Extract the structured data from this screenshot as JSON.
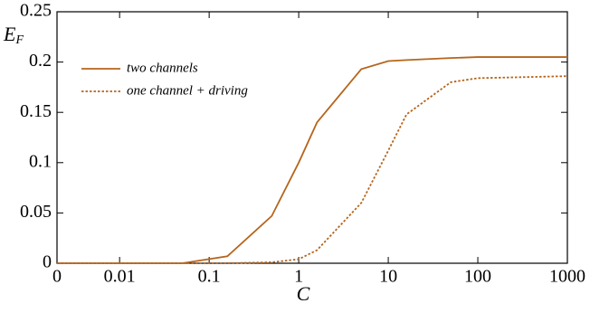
{
  "chart_data": {
    "type": "line",
    "x_label": "C",
    "y_label": "E_F",
    "log_x": true,
    "x": [
      0.002,
      0.01,
      0.05,
      0.16,
      0.5,
      1,
      1.6,
      5,
      10,
      16,
      50,
      100,
      1000
    ],
    "series": [
      {
        "name": "two channels",
        "color": "#b5651d",
        "dash": "solid",
        "values": [
          0,
          0,
          0,
          0.007,
          0.047,
          0.1,
          0.14,
          0.193,
          0.201,
          0.202,
          0.204,
          0.205,
          0.205
        ]
      },
      {
        "name": "one channel + driving",
        "color": "#b5651d",
        "dash": "dotted",
        "values": [
          0,
          0,
          0,
          0,
          0.001,
          0.004,
          0.013,
          0.06,
          0.112,
          0.148,
          0.18,
          0.184,
          0.186
        ]
      }
    ],
    "xlim": [
      0.002,
      1000
    ],
    "xticks": [
      {
        "value": 0.002,
        "label": "0"
      },
      0.01,
      0.1,
      1,
      10,
      100,
      1000
    ],
    "ylim": [
      0,
      0.25
    ],
    "yticks": [
      0,
      0.05,
      0.1,
      0.15,
      0.2,
      0.25
    ],
    "legend": "upper left"
  }
}
